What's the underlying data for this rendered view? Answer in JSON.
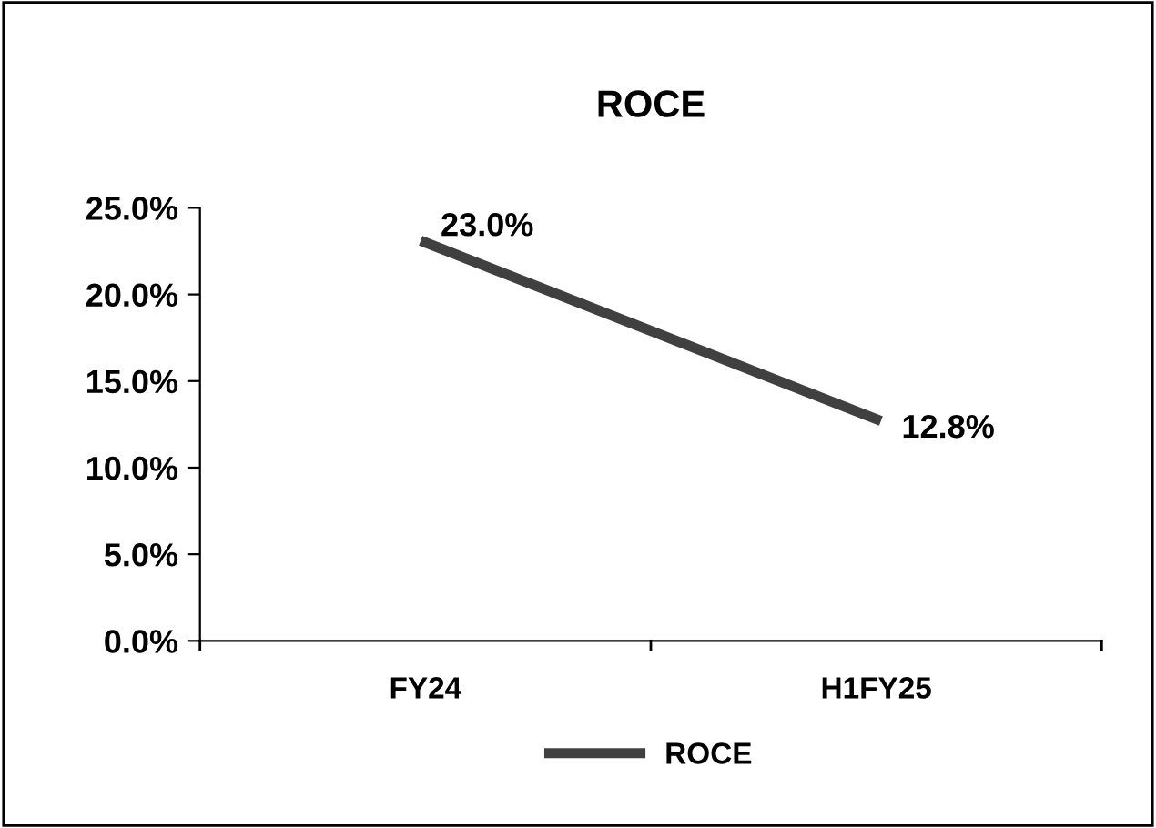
{
  "chart_data": {
    "type": "line",
    "title": "ROCE",
    "categories": [
      "FY24",
      "H1FY25"
    ],
    "series": [
      {
        "name": "ROCE",
        "color": "#404040",
        "values": [
          23.0,
          12.8
        ],
        "value_labels": [
          "23.0%",
          "12.8%"
        ]
      }
    ],
    "ylim": [
      0,
      25
    ],
    "yticks": [
      {
        "value": 0,
        "label": "0.0%"
      },
      {
        "value": 5,
        "label": "5.0%"
      },
      {
        "value": 10,
        "label": "10.0%"
      },
      {
        "value": 15,
        "label": "15.0%"
      },
      {
        "value": 20,
        "label": "20.0%"
      },
      {
        "value": 25,
        "label": "25.0%"
      }
    ],
    "grid": false,
    "legend": "bottom",
    "marker": "none",
    "line_style": "solid"
  }
}
